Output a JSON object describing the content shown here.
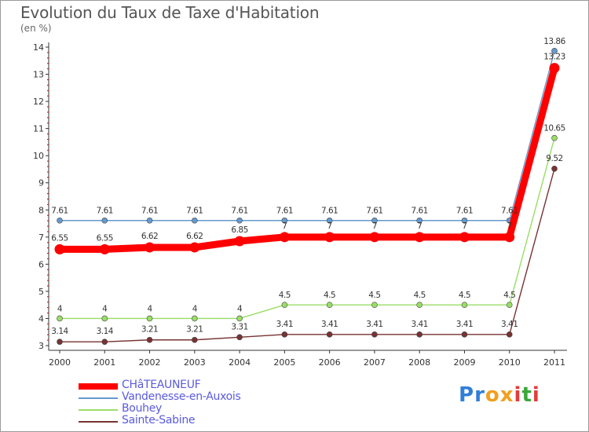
{
  "title": "Evolution du Taux de Taxe d'Habitation",
  "subtitle": "(en %)",
  "logo": {
    "letters": [
      "P",
      "r",
      "o",
      "x",
      "i",
      "t",
      "i"
    ],
    "colors": [
      "#2f7fd8",
      "#2f7fd8",
      "#f0a020",
      "#f0a020",
      "#e23c3c",
      "#3aa83a",
      "#e23c3c"
    ]
  },
  "chart_data": {
    "type": "line",
    "title": "Evolution du Taux de Taxe d'Habitation",
    "ylabel": "(en %)",
    "xlabel": "",
    "x": [
      "2000",
      "2001",
      "2002",
      "2003",
      "2004",
      "2005",
      "2006",
      "2007",
      "2008",
      "2009",
      "2010",
      "2011"
    ],
    "ylim": [
      3,
      14
    ],
    "yticks": [
      "3",
      "4",
      "5",
      "6",
      "7",
      "8",
      "9",
      "10",
      "11",
      "12",
      "13",
      "14"
    ],
    "grid": false,
    "legend": "bottom-left",
    "series": [
      {
        "name": "CHâTEAUNEUF",
        "color": "#ff0000",
        "values": [
          6.55,
          6.55,
          6.62,
          6.62,
          6.85,
          7,
          7,
          7,
          7,
          7,
          7,
          13.23
        ],
        "labels": [
          "6.55",
          "6.55",
          "6.62",
          "6.62",
          "6.85",
          "7",
          "7",
          "7",
          "7",
          "7",
          "7",
          "13.23"
        ]
      },
      {
        "name": "Vandenesse-en-Auxois",
        "color": "#6699cc",
        "values": [
          7.61,
          7.61,
          7.61,
          7.61,
          7.61,
          7.61,
          7.61,
          7.61,
          7.61,
          7.61,
          7.61,
          13.86
        ],
        "labels": [
          "7.61",
          "7.61",
          "7.61",
          "7.61",
          "7.61",
          "7.61",
          "7.61",
          "7.61",
          "7.61",
          "7.61",
          "7.61",
          "13.86"
        ]
      },
      {
        "name": "Bouhey",
        "color": "#99dd66",
        "values": [
          4,
          4,
          4,
          4,
          4,
          4.5,
          4.5,
          4.5,
          4.5,
          4.5,
          4.5,
          10.65
        ],
        "labels": [
          "4",
          "4",
          "4",
          "4",
          "4",
          "4.5",
          "4.5",
          "4.5",
          "4.5",
          "4.5",
          "4.5",
          "10.65"
        ]
      },
      {
        "name": "Sainte-Sabine",
        "color": "#773333",
        "values": [
          3.14,
          3.14,
          3.21,
          3.21,
          3.31,
          3.41,
          3.41,
          3.41,
          3.41,
          3.41,
          3.41,
          9.52
        ],
        "labels": [
          "3.14",
          "3.14",
          "3.21",
          "3.21",
          "3.31",
          "3.41",
          "3.41",
          "3.41",
          "3.41",
          "3.41",
          "3.41",
          "9.52"
        ]
      }
    ]
  }
}
